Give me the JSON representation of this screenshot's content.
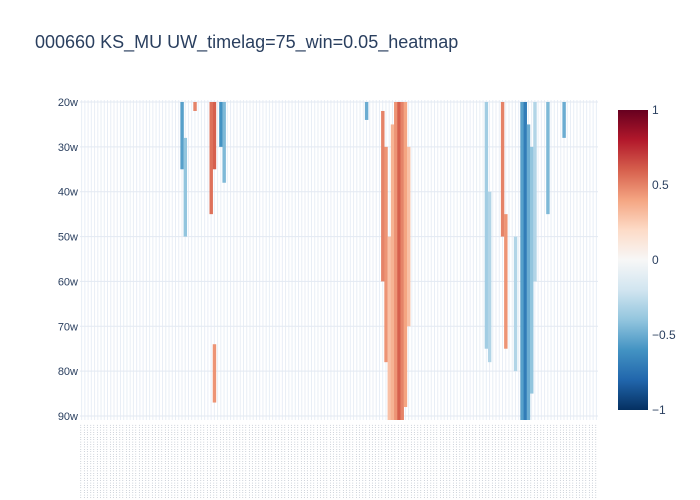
{
  "chart_data": {
    "type": "heatmap",
    "title": "000660 KS_MU UW_timelag=75_win=0.05_heatmap",
    "y_categories": [
      "20w",
      "30w",
      "40w",
      "50w",
      "60w",
      "70w",
      "80w",
      "90w"
    ],
    "y_range_weeks": [
      20,
      90
    ],
    "x_count": 160,
    "x_tick_labels_legible": false,
    "z_range": [
      -1,
      1
    ],
    "colorscale": [
      "#053061",
      "#2166ac",
      "#4393c3",
      "#92c5de",
      "#d1e5f0",
      "#f7f7f7",
      "#fddbc7",
      "#f4a582",
      "#d6604d",
      "#b2182b",
      "#67001f"
    ],
    "colorbar_ticks": [
      {
        "value": 1,
        "label": "1"
      },
      {
        "value": 0.5,
        "label": "0.5"
      },
      {
        "value": 0,
        "label": "0"
      },
      {
        "value": -0.5,
        "label": "−0.5"
      },
      {
        "value": -1,
        "label": "−1"
      }
    ],
    "streaks": [
      {
        "x": 31,
        "y0": 20,
        "y1": 35,
        "z": -0.55
      },
      {
        "x": 32,
        "y0": 28,
        "y1": 50,
        "z": -0.4
      },
      {
        "x": 35,
        "y0": 20,
        "y1": 22,
        "z": 0.5
      },
      {
        "x": 40,
        "y0": 20,
        "y1": 45,
        "z": 0.55
      },
      {
        "x": 41,
        "y0": 20,
        "y1": 35,
        "z": 0.6
      },
      {
        "x": 43,
        "y0": 20,
        "y1": 30,
        "z": -0.6
      },
      {
        "x": 44,
        "y0": 20,
        "y1": 38,
        "z": -0.45
      },
      {
        "x": 41,
        "y0": 74,
        "y1": 87,
        "z": 0.45
      },
      {
        "x": 88,
        "y0": 20,
        "y1": 24,
        "z": -0.5
      },
      {
        "x": 93,
        "y0": 22,
        "y1": 60,
        "z": 0.5
      },
      {
        "x": 94,
        "y0": 30,
        "y1": 78,
        "z": 0.45
      },
      {
        "x": 95,
        "y0": 50,
        "y1": 91,
        "z": 0.3
      },
      {
        "x": 96,
        "y0": 25,
        "y1": 91,
        "z": 0.35
      },
      {
        "x": 97,
        "y0": 20,
        "y1": 91,
        "z": 0.45
      },
      {
        "x": 98,
        "y0": 20,
        "y1": 91,
        "z": 0.6
      },
      {
        "x": 99,
        "y0": 20,
        "y1": 91,
        "z": 0.5
      },
      {
        "x": 100,
        "y0": 20,
        "y1": 88,
        "z": 0.4
      },
      {
        "x": 101,
        "y0": 30,
        "y1": 70,
        "z": 0.3
      },
      {
        "x": 125,
        "y0": 20,
        "y1": 75,
        "z": -0.35
      },
      {
        "x": 126,
        "y0": 40,
        "y1": 78,
        "z": -0.3
      },
      {
        "x": 130,
        "y0": 20,
        "y1": 50,
        "z": 0.5
      },
      {
        "x": 131,
        "y0": 45,
        "y1": 75,
        "z": 0.45
      },
      {
        "x": 134,
        "y0": 50,
        "y1": 80,
        "z": -0.3
      },
      {
        "x": 136,
        "y0": 20,
        "y1": 91,
        "z": -0.55
      },
      {
        "x": 137,
        "y0": 20,
        "y1": 91,
        "z": -0.7
      },
      {
        "x": 138,
        "y0": 25,
        "y1": 91,
        "z": -0.5
      },
      {
        "x": 139,
        "y0": 30,
        "y1": 85,
        "z": -0.4
      },
      {
        "x": 140,
        "y0": 20,
        "y1": 60,
        "z": -0.3
      },
      {
        "x": 144,
        "y0": 20,
        "y1": 45,
        "z": -0.45
      },
      {
        "x": 149,
        "y0": 20,
        "y1": 28,
        "z": -0.5
      }
    ]
  }
}
